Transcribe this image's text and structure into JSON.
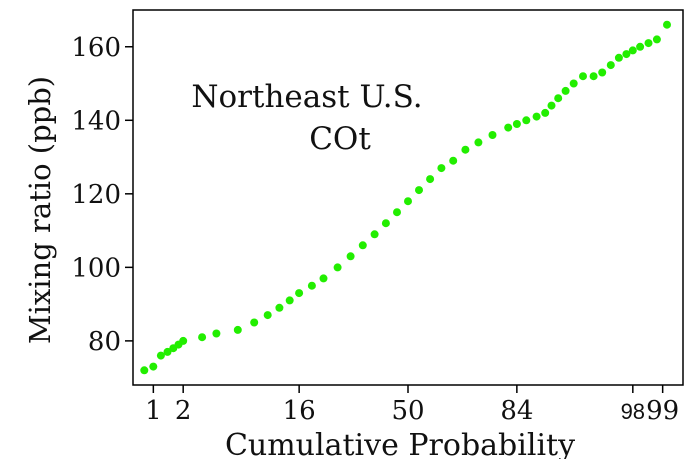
{
  "chart_data": {
    "type": "scatter",
    "title_lines": [
      "Northeast U.S.",
      "COt"
    ],
    "xlabel": "Cumulative Probability",
    "ylabel": "Mixing ratio (ppb)",
    "x_scale": "probability",
    "x_ticks": [
      1,
      2,
      16,
      50,
      84,
      98,
      99
    ],
    "x_tick_labels": [
      "1",
      "2",
      "16",
      "50",
      "84",
      "98",
      "99"
    ],
    "y_ticks": [
      80,
      100,
      120,
      140,
      160
    ],
    "ylim": [
      68,
      170
    ],
    "grid": false,
    "point_color": "#22ee00",
    "series": [
      {
        "values_note": "quantile points read off chart",
        "points": [
          {
            "x": 0.8,
            "y": 72
          },
          {
            "x": 1.0,
            "y": 73
          },
          {
            "x": 1.2,
            "y": 76
          },
          {
            "x": 1.4,
            "y": 77
          },
          {
            "x": 1.6,
            "y": 78
          },
          {
            "x": 1.8,
            "y": 79
          },
          {
            "x": 2,
            "y": 80
          },
          {
            "x": 3,
            "y": 81
          },
          {
            "x": 4,
            "y": 82
          },
          {
            "x": 6,
            "y": 83
          },
          {
            "x": 8,
            "y": 85
          },
          {
            "x": 10,
            "y": 87
          },
          {
            "x": 12,
            "y": 89
          },
          {
            "x": 14,
            "y": 91
          },
          {
            "x": 16,
            "y": 93
          },
          {
            "x": 19,
            "y": 95
          },
          {
            "x": 22,
            "y": 97
          },
          {
            "x": 26,
            "y": 100
          },
          {
            "x": 30,
            "y": 103
          },
          {
            "x": 34,
            "y": 106
          },
          {
            "x": 38,
            "y": 109
          },
          {
            "x": 42,
            "y": 112
          },
          {
            "x": 46,
            "y": 115
          },
          {
            "x": 50,
            "y": 118
          },
          {
            "x": 54,
            "y": 121
          },
          {
            "x": 58,
            "y": 124
          },
          {
            "x": 62,
            "y": 127
          },
          {
            "x": 66,
            "y": 129
          },
          {
            "x": 70,
            "y": 132
          },
          {
            "x": 74,
            "y": 134
          },
          {
            "x": 78,
            "y": 136
          },
          {
            "x": 82,
            "y": 138
          },
          {
            "x": 84,
            "y": 139
          },
          {
            "x": 86,
            "y": 140
          },
          {
            "x": 88,
            "y": 141
          },
          {
            "x": 89.5,
            "y": 142
          },
          {
            "x": 90.5,
            "y": 144
          },
          {
            "x": 91.5,
            "y": 146
          },
          {
            "x": 92.5,
            "y": 148
          },
          {
            "x": 93.5,
            "y": 150
          },
          {
            "x": 94.5,
            "y": 152
          },
          {
            "x": 95.5,
            "y": 152
          },
          {
            "x": 96.2,
            "y": 153
          },
          {
            "x": 96.8,
            "y": 155
          },
          {
            "x": 97.3,
            "y": 157
          },
          {
            "x": 97.7,
            "y": 158
          },
          {
            "x": 98.0,
            "y": 159
          },
          {
            "x": 98.3,
            "y": 160
          },
          {
            "x": 98.6,
            "y": 161
          },
          {
            "x": 98.85,
            "y": 162
          },
          {
            "x": 99.1,
            "y": 166
          }
        ]
      }
    ]
  }
}
